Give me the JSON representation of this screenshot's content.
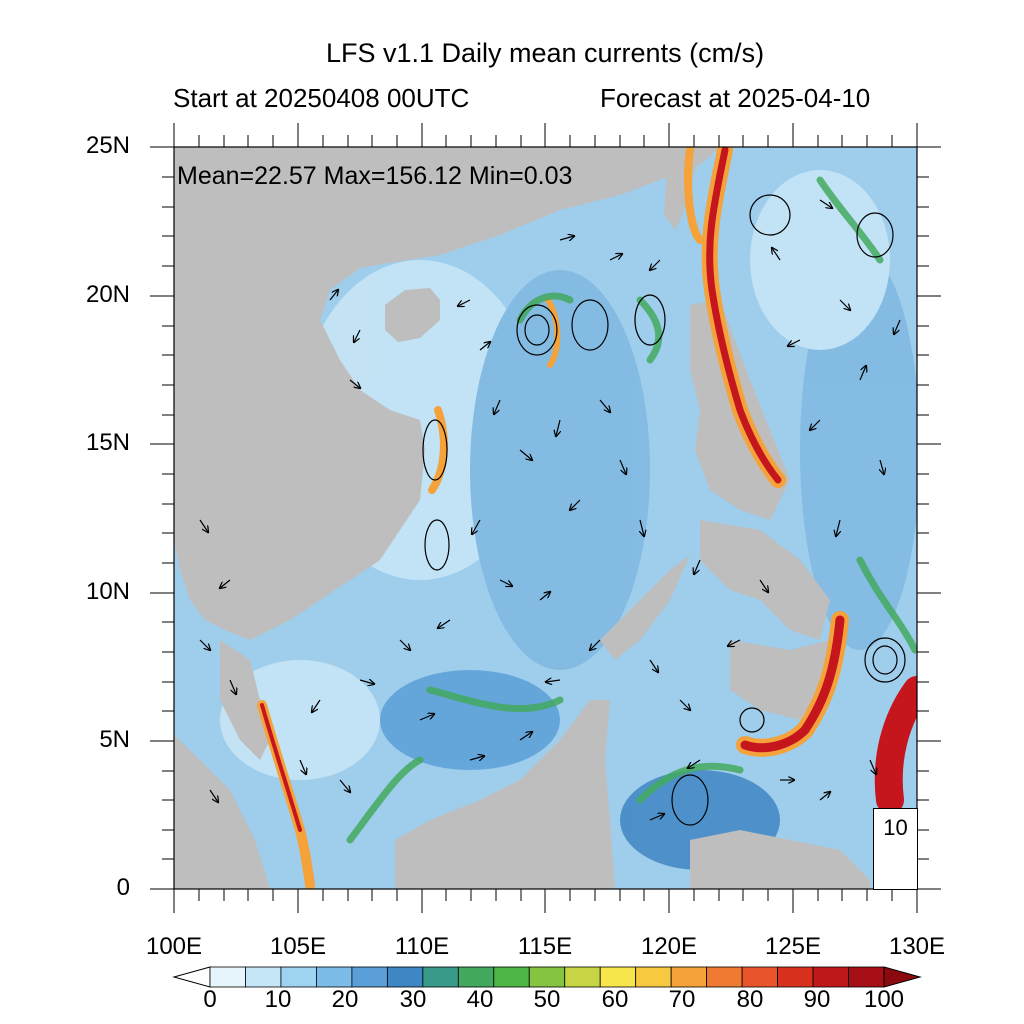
{
  "header": {
    "title": "LFS v1.1 Daily mean currents (cm/s)",
    "start_label": "Start at 20250408 00UTC",
    "forecast_label": "Forecast at 2025-04-10"
  },
  "stats": {
    "text": "Mean=22.57  Max=156.12  Min=0.03"
  },
  "axes": {
    "lon_range": [
      100,
      130
    ],
    "lat_range": [
      0,
      25
    ],
    "x_ticks": [
      "100E",
      "105E",
      "110E",
      "115E",
      "120E",
      "125E",
      "130E"
    ],
    "y_ticks": [
      "25N",
      "20N",
      "15N",
      "10N",
      "5N",
      "0"
    ]
  },
  "reference_vector": {
    "label": "10"
  },
  "colorbar": {
    "labels": [
      "0",
      "10",
      "20",
      "30",
      "40",
      "50",
      "60",
      "70",
      "80",
      "90",
      "100"
    ],
    "colors": [
      "#e6f4fb",
      "#c4e6f7",
      "#9ed3f2",
      "#7bbde8",
      "#5a9fd8",
      "#3f86c4",
      "#3a9a8a",
      "#43a95f",
      "#4cb544",
      "#84c441",
      "#c7d544",
      "#f6e54b",
      "#f8c83f",
      "#f5a23a",
      "#ef7a31",
      "#e8552a",
      "#d8321f",
      "#c0191b",
      "#a50f15"
    ],
    "triangle_colors": [
      "#ffffff",
      "#8b0a10"
    ]
  },
  "colors": {
    "land": "#bebebe",
    "ocean_low": "#cde9f7",
    "ocean_mid": "#7fb8e2",
    "strong_current": "#c4161c",
    "vector": "#000000"
  }
}
